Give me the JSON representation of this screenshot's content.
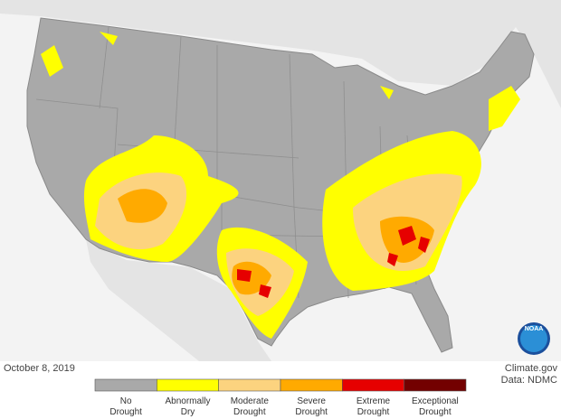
{
  "footer": {
    "date": "October 8, 2019",
    "credit": "Climate.gov",
    "source": "Data: NDMC"
  },
  "logo": {
    "text": "NOAA"
  },
  "legend": {
    "items": [
      {
        "label": [
          "No",
          "Drought"
        ],
        "color": "#a9a9a9"
      },
      {
        "label": [
          "Abnormally",
          "Dry"
        ],
        "color": "#ffff00"
      },
      {
        "label": [
          "Moderate",
          "Drought"
        ],
        "color": "#fcd37f"
      },
      {
        "label": [
          "Severe",
          "Drought"
        ],
        "color": "#ffaa00"
      },
      {
        "label": [
          "Extreme",
          "Drought"
        ],
        "color": "#e60000"
      },
      {
        "label": [
          "Exceptional",
          "Drought"
        ],
        "color": "#730000"
      }
    ]
  }
}
